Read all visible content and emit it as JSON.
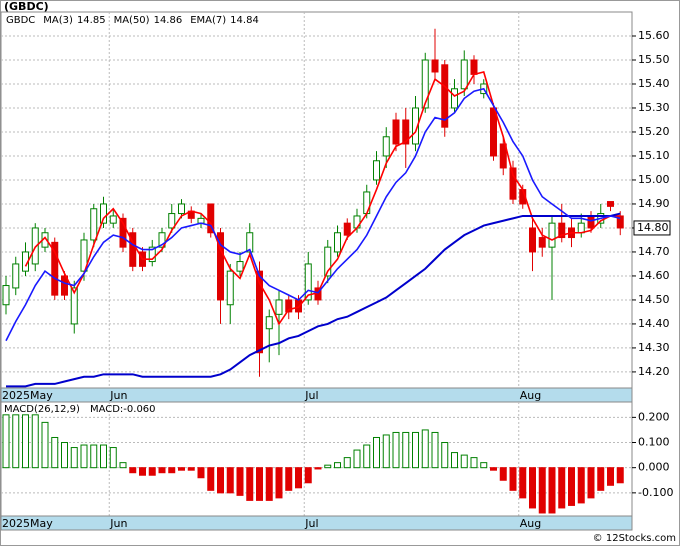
{
  "chart_data": [
    {
      "type": "candlestick",
      "title": "(GBDC)",
      "symbol": "GBDC",
      "categories": [
        "2025May",
        null,
        null,
        null,
        null,
        null,
        null,
        null,
        null,
        null,
        null,
        "Jun",
        null,
        null,
        null,
        null,
        null,
        null,
        null,
        null,
        null,
        null,
        null,
        null,
        null,
        null,
        null,
        null,
        null,
        null,
        null,
        "Jul",
        null,
        null,
        null,
        null,
        null,
        null,
        null,
        null,
        null,
        null,
        null,
        null,
        null,
        null,
        null,
        null,
        null,
        null,
        null,
        null,
        null,
        "Aug",
        null,
        null,
        null,
        null,
        null,
        null,
        null,
        null,
        null,
        null
      ],
      "open": [
        14.48,
        14.55,
        14.62,
        14.65,
        14.72,
        14.74,
        14.6,
        14.4,
        14.62,
        14.75,
        14.82,
        14.82,
        14.84,
        14.78,
        14.7,
        14.66,
        14.72,
        14.8,
        14.86,
        14.87,
        14.82,
        14.9,
        14.78,
        14.48,
        14.62,
        14.7,
        14.62,
        14.38,
        14.44,
        14.5,
        14.5,
        14.5,
        14.55,
        14.6,
        14.7,
        14.82,
        14.8,
        14.86,
        15.0,
        15.1,
        15.25,
        15.25,
        15.15,
        15.3,
        15.5,
        15.48,
        15.3,
        15.38,
        15.5,
        15.36,
        15.3,
        15.15,
        15.05,
        14.96,
        14.8,
        14.76,
        14.72,
        14.82,
        14.8,
        14.78,
        14.85,
        14.82,
        14.91,
        14.85
      ],
      "high": [
        14.6,
        14.68,
        14.74,
        14.82,
        14.8,
        14.76,
        14.62,
        14.58,
        14.78,
        14.9,
        14.93,
        14.88,
        14.86,
        14.8,
        14.72,
        14.75,
        14.8,
        14.9,
        14.92,
        14.89,
        14.86,
        14.9,
        14.8,
        14.65,
        14.7,
        14.82,
        14.66,
        14.46,
        14.54,
        14.52,
        14.52,
        14.7,
        14.58,
        14.75,
        14.81,
        14.84,
        14.88,
        14.98,
        15.12,
        15.22,
        15.28,
        15.3,
        15.35,
        15.53,
        15.63,
        15.5,
        15.42,
        15.54,
        15.52,
        15.42,
        15.32,
        15.18,
        15.08,
        14.98,
        14.84,
        14.8,
        14.85,
        14.9,
        14.84,
        14.86,
        14.87,
        14.9,
        14.91,
        14.87
      ],
      "low": [
        14.44,
        14.52,
        14.6,
        14.62,
        14.7,
        14.5,
        14.5,
        14.36,
        14.58,
        14.72,
        14.8,
        14.8,
        14.7,
        14.62,
        14.62,
        14.64,
        14.7,
        14.78,
        14.84,
        14.82,
        14.8,
        14.76,
        14.4,
        14.4,
        14.6,
        14.68,
        14.18,
        14.24,
        14.27,
        14.42,
        14.42,
        14.48,
        14.48,
        14.57,
        14.68,
        14.75,
        14.78,
        14.84,
        14.98,
        15.05,
        15.12,
        15.05,
        15.12,
        15.28,
        15.42,
        15.18,
        15.28,
        15.35,
        15.4,
        15.34,
        15.08,
        15.02,
        14.9,
        14.88,
        14.62,
        14.68,
        14.5,
        14.74,
        14.72,
        14.76,
        14.78,
        14.8,
        14.87,
        14.77
      ],
      "close": [
        14.56,
        14.65,
        14.7,
        14.8,
        14.78,
        14.52,
        14.52,
        14.55,
        14.75,
        14.88,
        14.9,
        14.85,
        14.72,
        14.64,
        14.64,
        14.72,
        14.78,
        14.86,
        14.9,
        14.84,
        14.84,
        14.78,
        14.5,
        14.62,
        14.66,
        14.78,
        14.28,
        14.43,
        14.5,
        14.45,
        14.45,
        14.65,
        14.5,
        14.72,
        14.78,
        14.77,
        14.85,
        14.95,
        15.08,
        15.18,
        15.15,
        15.15,
        15.3,
        15.5,
        15.45,
        15.22,
        15.38,
        15.5,
        15.44,
        15.4,
        15.1,
        15.05,
        14.92,
        14.9,
        14.7,
        14.72,
        14.82,
        14.76,
        14.76,
        14.82,
        14.8,
        14.86,
        14.89,
        14.8
      ],
      "up_color": "#008000",
      "down_color": "#e00000",
      "lines": [
        {
          "name": "MA(3)",
          "value": 14.85,
          "color": "#ff0000",
          "values": [
            null,
            null,
            14.64,
            14.72,
            14.76,
            14.7,
            14.61,
            14.53,
            14.61,
            14.73,
            14.84,
            14.88,
            14.82,
            14.74,
            14.67,
            14.67,
            14.71,
            14.79,
            14.85,
            14.87,
            14.86,
            14.82,
            14.71,
            14.63,
            14.59,
            14.69,
            14.57,
            14.5,
            14.4,
            14.46,
            14.47,
            14.52,
            14.53,
            14.62,
            14.67,
            14.76,
            14.8,
            14.86,
            14.96,
            15.07,
            15.14,
            15.16,
            15.2,
            15.32,
            15.42,
            15.39,
            15.35,
            15.37,
            15.44,
            15.45,
            15.31,
            15.18,
            15.02,
            14.96,
            14.84,
            14.77,
            14.75,
            14.77,
            14.78,
            14.78,
            14.79,
            14.83,
            14.85,
            14.85
          ]
        },
        {
          "name": "MA(50)",
          "value": 14.86,
          "color": "#0000cc",
          "values": [
            14.14,
            14.14,
            14.14,
            14.15,
            14.15,
            14.15,
            14.16,
            14.17,
            14.18,
            14.18,
            14.19,
            14.19,
            14.19,
            14.19,
            14.18,
            14.18,
            14.18,
            14.18,
            14.18,
            14.18,
            14.18,
            14.18,
            14.19,
            14.21,
            14.24,
            14.27,
            14.29,
            14.31,
            14.32,
            14.34,
            14.35,
            14.37,
            14.39,
            14.4,
            14.42,
            14.43,
            14.45,
            14.47,
            14.49,
            14.51,
            14.54,
            14.57,
            14.6,
            14.63,
            14.67,
            14.71,
            14.74,
            14.77,
            14.79,
            14.81,
            14.82,
            14.83,
            14.84,
            14.85,
            14.85,
            14.85,
            14.85,
            14.85,
            14.85,
            14.85,
            14.85,
            14.85,
            14.85,
            14.86
          ]
        },
        {
          "name": "EMA(7)",
          "value": 14.84,
          "color": "#1a1aff",
          "values": [
            14.33,
            14.41,
            14.48,
            14.56,
            14.62,
            14.59,
            14.57,
            14.56,
            14.61,
            14.68,
            14.74,
            14.77,
            14.76,
            14.73,
            14.71,
            14.71,
            14.73,
            14.76,
            14.8,
            14.81,
            14.82,
            14.81,
            14.73,
            14.7,
            14.69,
            14.71,
            14.6,
            14.56,
            14.54,
            14.52,
            14.5,
            14.54,
            14.53,
            14.58,
            14.63,
            14.67,
            14.71,
            14.77,
            14.85,
            14.93,
            14.99,
            15.03,
            15.1,
            15.2,
            15.26,
            15.25,
            15.28,
            15.34,
            15.37,
            15.38,
            15.31,
            15.24,
            15.16,
            15.1,
            15.0,
            14.93,
            14.9,
            14.87,
            14.84,
            14.84,
            14.83,
            14.84,
            14.85,
            14.84
          ]
        }
      ],
      "ylim": [
        14.133,
        15.7
      ],
      "yticks": [
        {
          "value": 14.2,
          "label": "14.20"
        },
        {
          "value": 14.3,
          "label": "14.30"
        },
        {
          "value": 14.4,
          "label": "14.40"
        },
        {
          "value": 14.5,
          "label": "14.50"
        },
        {
          "value": 14.6,
          "label": "14.60"
        },
        {
          "value": 14.7,
          "label": "14.70"
        },
        {
          "value": 14.8,
          "label": "14.80"
        },
        {
          "value": 14.9,
          "label": "14.90"
        },
        {
          "value": 15.0,
          "label": "15.00"
        },
        {
          "value": 15.1,
          "label": "15.10"
        },
        {
          "value": 15.2,
          "label": "15.20"
        },
        {
          "value": 15.3,
          "label": "15.30"
        },
        {
          "value": 15.4,
          "label": "15.40"
        },
        {
          "value": 15.5,
          "label": "15.50"
        },
        {
          "value": 15.6,
          "label": "15.60"
        }
      ],
      "last_price": {
        "value": 14.8,
        "label": "14.80"
      },
      "grid": true
    },
    {
      "type": "bar",
      "title": "MACD(26,12,9)",
      "last": {
        "value": -0.06,
        "label": "MACD:-0.060"
      },
      "categories": [
        "2025May",
        null,
        null,
        null,
        null,
        null,
        null,
        null,
        null,
        null,
        null,
        "Jun",
        null,
        null,
        null,
        null,
        null,
        null,
        null,
        null,
        null,
        null,
        null,
        null,
        null,
        null,
        null,
        null,
        null,
        null,
        null,
        "Jul",
        null,
        null,
        null,
        null,
        null,
        null,
        null,
        null,
        null,
        null,
        null,
        null,
        null,
        null,
        null,
        null,
        null,
        null,
        null,
        null,
        null,
        "Aug",
        null,
        null,
        null,
        null,
        null,
        null,
        null,
        null,
        null,
        null
      ],
      "values": [
        0.21,
        0.21,
        0.21,
        0.21,
        0.18,
        0.12,
        0.1,
        0.08,
        0.09,
        0.09,
        0.09,
        0.08,
        0.02,
        -0.02,
        -0.03,
        -0.03,
        -0.02,
        -0.02,
        -0.01,
        -0.01,
        -0.04,
        -0.09,
        -0.1,
        -0.1,
        -0.11,
        -0.13,
        -0.13,
        -0.13,
        -0.12,
        -0.09,
        -0.08,
        -0.06,
        -0.005,
        0.01,
        0.02,
        0.04,
        0.07,
        0.09,
        0.12,
        0.13,
        0.14,
        0.14,
        0.14,
        0.15,
        0.14,
        0.1,
        0.06,
        0.05,
        0.04,
        0.02,
        -0.01,
        -0.05,
        -0.09,
        -0.12,
        -0.16,
        -0.18,
        -0.18,
        -0.16,
        -0.15,
        -0.14,
        -0.12,
        -0.09,
        -0.07,
        -0.06
      ],
      "pos_color": "#008000",
      "neg_color": "#e00000",
      "ylim": [
        -0.192,
        0.261
      ],
      "yticks": [
        {
          "value": -0.1,
          "label": "-0.100"
        },
        {
          "value": 0,
          "label": "0.000"
        },
        {
          "value": 0.1,
          "label": "0.100"
        },
        {
          "value": 0.2,
          "label": "0.200"
        }
      ],
      "grid": true
    }
  ],
  "footer": "© 12Stocks.com"
}
